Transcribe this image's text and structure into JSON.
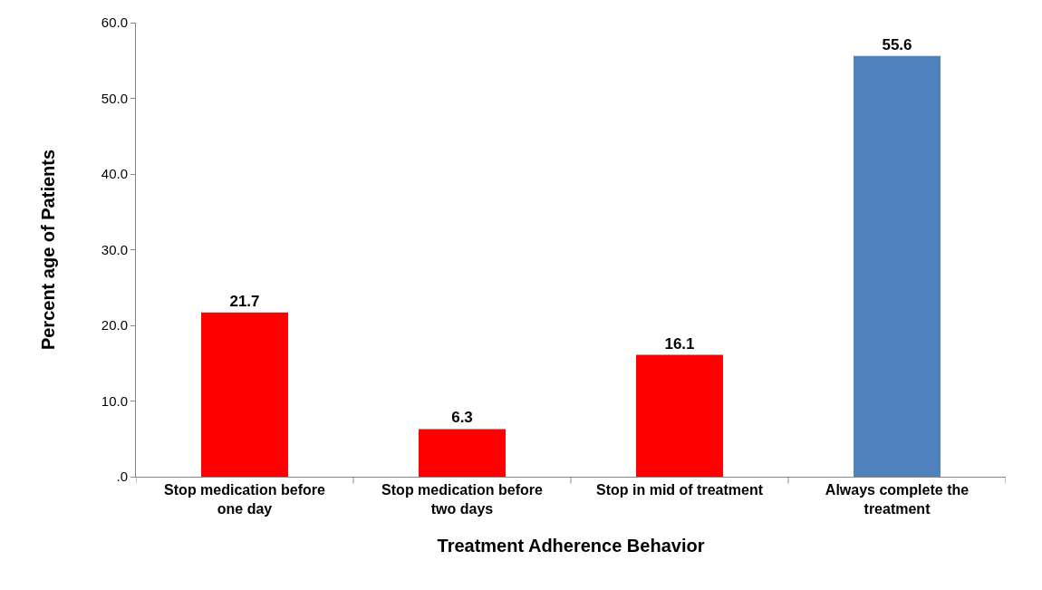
{
  "chart_data": {
    "type": "bar",
    "xlabel": "Treatment Adherence Behavior",
    "ylabel": "Percent age of Patients",
    "categories": [
      "Stop medication before one day",
      "Stop medication before two days",
      "Stop in mid of treatment",
      "Always complete the treatment"
    ],
    "values": [
      21.7,
      6.3,
      16.1,
      55.6
    ],
    "colors": [
      "#ff0000",
      "#ff0000",
      "#ff0000",
      "#4f81bd"
    ],
    "ylim": [
      0,
      60
    ],
    "yticks": [
      {
        "value": 0,
        "label": ".0"
      },
      {
        "value": 10,
        "label": "10.0"
      },
      {
        "value": 20,
        "label": "20.0"
      },
      {
        "value": 30,
        "label": "30.0"
      },
      {
        "value": 40,
        "label": "40.0"
      },
      {
        "value": 50,
        "label": "50.0"
      },
      {
        "value": 60,
        "label": "60.0"
      }
    ],
    "data_labels": true
  }
}
